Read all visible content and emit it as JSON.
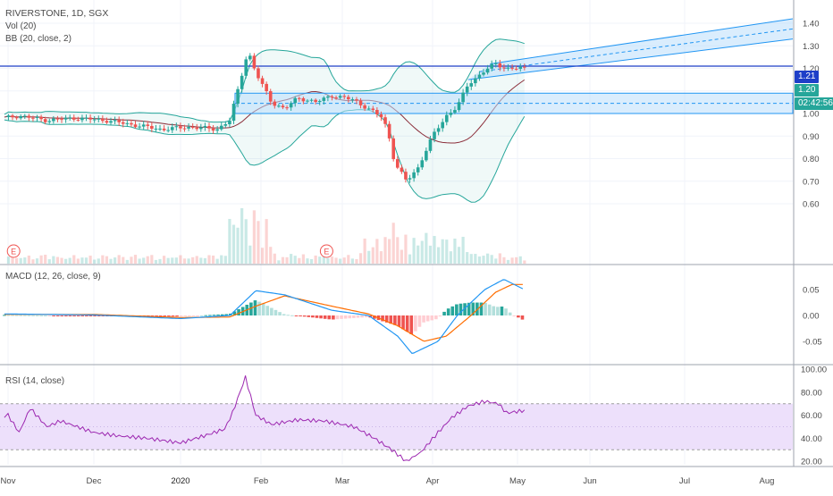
{
  "header": {
    "symbol_line": "RIVERSTONE, 1D, SGX",
    "vol_label": "Vol (20)",
    "bb_label": "BB (20, close, 2)",
    "macd_label": "MACD (12, 26, close, 9)",
    "rsi_label": "RSI (14, close)"
  },
  "badges": {
    "price_line": "1.21",
    "last_price": "1.20",
    "countdown": "02:42:56",
    "earnings_marker": "E"
  },
  "colors": {
    "up": "#26a69a",
    "down": "#ef5350",
    "bb_band": "#26a69a",
    "bb_basis": "#8b2e3a",
    "zone_fill": "#bbdefb",
    "zone_edge": "#2196f3",
    "macd_line": "#2196f3",
    "signal_line": "#ff6d00",
    "rsi_line": "#9c27b0",
    "rsi_band": "#ede0fb",
    "price_line": "#1e3fc8",
    "last_price": "#26a69a",
    "countdown": "#26a69a"
  },
  "chart_data": [
    {
      "type": "candlestick",
      "name": "RIVERSTONE, 1D, SGX",
      "x_axis": {
        "ticks": [
          "Nov",
          "Dec",
          "2020",
          "Feb",
          "Mar",
          "Apr",
          "May",
          "Jun",
          "Jul",
          "Aug"
        ]
      },
      "y_axis": {
        "ticks": [
          "1.40",
          "1.30",
          "1.20",
          "1.10",
          "1.00",
          "0.90",
          "0.80",
          "0.70",
          "0.60"
        ],
        "range": [
          0.55,
          1.45
        ]
      },
      "price_path": [
        [
          "Oct 28",
          0.98
        ],
        [
          "Nov 5",
          0.99
        ],
        [
          "Nov 15",
          0.97
        ],
        [
          "Nov 25",
          0.98
        ],
        [
          "Dec 5",
          0.97
        ],
        [
          "Dec 15",
          0.95
        ],
        [
          "Dec 25",
          0.93
        ],
        [
          "Jan 5",
          0.94
        ],
        [
          "Jan 15",
          0.93
        ],
        [
          "Jan 20",
          0.97
        ],
        [
          "Jan 23",
          1.1
        ],
        [
          "Jan 27",
          1.28
        ],
        [
          "Jan 30",
          1.18
        ],
        [
          "Feb 5",
          1.05
        ],
        [
          "Feb 10",
          1.02
        ],
        [
          "Feb 15",
          1.07
        ],
        [
          "Feb 22",
          1.05
        ],
        [
          "Feb 28",
          1.08
        ],
        [
          "Mar 5",
          1.06
        ],
        [
          "Mar 10",
          1.02
        ],
        [
          "Mar 15",
          0.98
        ],
        [
          "Mar 17",
          0.9
        ],
        [
          "Mar 19",
          0.78
        ],
        [
          "Mar 23",
          0.7
        ],
        [
          "Mar 27",
          0.76
        ],
        [
          "Apr 1",
          0.9
        ],
        [
          "Apr 6",
          0.99
        ],
        [
          "Apr 10",
          1.03
        ],
        [
          "Apr 14",
          1.13
        ],
        [
          "Apr 20",
          1.19
        ],
        [
          "Apr 24",
          1.22
        ],
        [
          "Apr 28",
          1.2
        ],
        [
          "May 4",
          1.2
        ]
      ],
      "overlays": {
        "horizontal_line": 1.21,
        "rectangle_zone": {
          "top": 1.09,
          "bottom": 1.0,
          "mid": 1.045,
          "from": "Jan 22",
          "to": "right edge"
        },
        "channel": {
          "lower": [
            [
              "Apr 14",
              1.15
            ],
            [
              "right edge",
              1.33
            ]
          ],
          "upper": [
            [
              "Apr 22",
              1.22
            ],
            [
              "right edge",
              1.42
            ]
          ]
        }
      },
      "earnings_markers": [
        "Nov 3",
        "Feb 26"
      ]
    },
    {
      "type": "histogram",
      "name": "Vol (20)",
      "note": "volume bars on price pane, largest spikes late Jan and late Mar/Apr"
    },
    {
      "type": "line",
      "name": "MACD (12, 26, close, 9)",
      "y_axis": {
        "ticks": [
          "0.05",
          "0.00",
          "-0.05"
        ],
        "range": [
          -0.09,
          0.09
        ]
      },
      "macd": [
        [
          "Oct 28",
          0.003
        ],
        [
          "Dec 1",
          0.001
        ],
        [
          "Jan 1",
          -0.006
        ],
        [
          "Jan 20",
          0.0
        ],
        [
          "Jan 30",
          0.048
        ],
        [
          "Feb 10",
          0.04
        ],
        [
          "Feb 28",
          0.01
        ],
        [
          "Mar 10",
          0.0
        ],
        [
          "Mar 20",
          -0.04
        ],
        [
          "Mar 25",
          -0.074
        ],
        [
          "Apr 3",
          -0.05
        ],
        [
          "Apr 10",
          0.0
        ],
        [
          "Apr 20",
          0.05
        ],
        [
          "Apr 27",
          0.07
        ],
        [
          "May 4",
          0.05
        ]
      ],
      "signal": [
        [
          "Oct 28",
          0.002
        ],
        [
          "Dec 1",
          0.002
        ],
        [
          "Jan 1",
          -0.004
        ],
        [
          "Jan 20",
          -0.003
        ],
        [
          "Jan 30",
          0.018
        ],
        [
          "Feb 10",
          0.038
        ],
        [
          "Feb 28",
          0.018
        ],
        [
          "Mar 10",
          0.003
        ],
        [
          "Mar 20",
          -0.02
        ],
        [
          "Mar 29",
          -0.05
        ],
        [
          "Apr 6",
          -0.04
        ],
        [
          "Apr 15",
          0.0
        ],
        [
          "Apr 24",
          0.045
        ],
        [
          "Apr 30",
          0.06
        ],
        [
          "May 4",
          0.06
        ]
      ]
    },
    {
      "type": "line",
      "name": "RSI (14, close)",
      "y_axis": {
        "ticks": [
          "100.00",
          "80.00",
          "60.00",
          "40.00",
          "20.00"
        ],
        "range": [
          13,
          103
        ]
      },
      "band": [
        30,
        70
      ],
      "midline": 50,
      "values": [
        [
          "Oct 28",
          58
        ],
        [
          "Nov 1",
          60
        ],
        [
          "Nov 5",
          45
        ],
        [
          "Nov 9",
          66
        ],
        [
          "Nov 15",
          50
        ],
        [
          "Nov 20",
          55
        ],
        [
          "Dec 1",
          45
        ],
        [
          "Dec 10",
          42
        ],
        [
          "Dec 20",
          40
        ],
        [
          "Jan 1",
          36
        ],
        [
          "Jan 10",
          42
        ],
        [
          "Jan 18",
          48
        ],
        [
          "Jan 21",
          62
        ],
        [
          "Jan 26",
          93
        ],
        [
          "Jan 30",
          60
        ],
        [
          "Feb 5",
          52
        ],
        [
          "Feb 15",
          56
        ],
        [
          "Feb 25",
          55
        ],
        [
          "Mar 5",
          50
        ],
        [
          "Mar 12",
          40
        ],
        [
          "Mar 18",
          30
        ],
        [
          "Mar 23",
          20
        ],
        [
          "Mar 28",
          28
        ],
        [
          "Apr 3",
          45
        ],
        [
          "Apr 8",
          58
        ],
        [
          "Apr 14",
          68
        ],
        [
          "Apr 20",
          72
        ],
        [
          "Apr 25",
          70
        ],
        [
          "Apr 28",
          62
        ],
        [
          "May 4",
          64
        ]
      ]
    }
  ]
}
